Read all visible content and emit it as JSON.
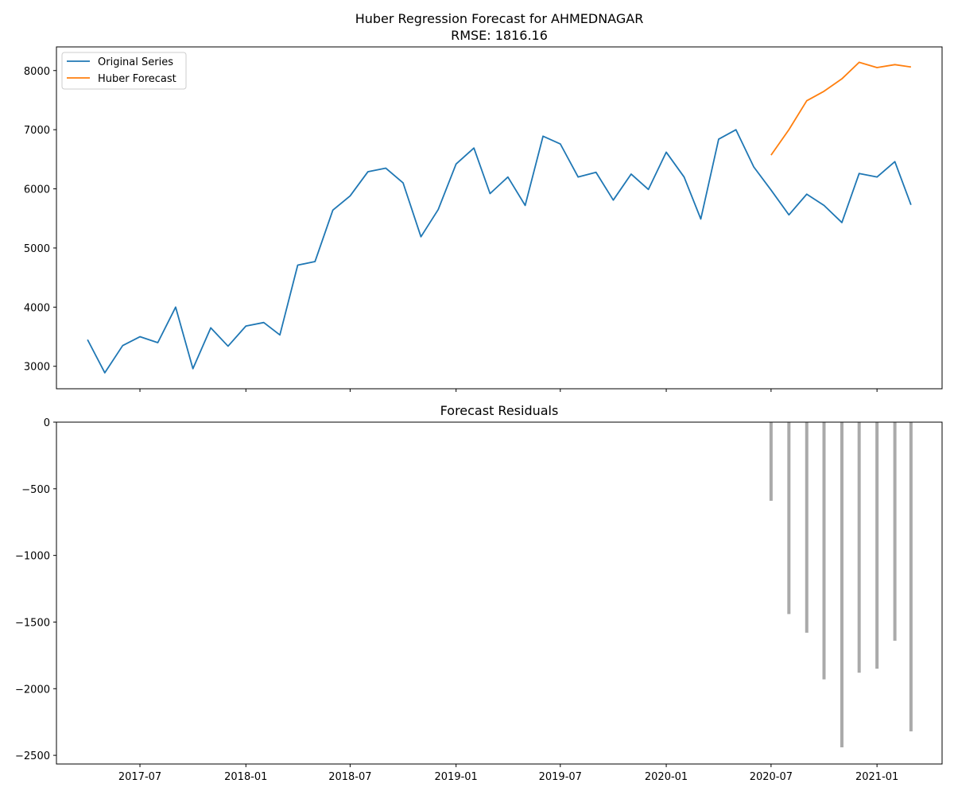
{
  "chart_data": [
    {
      "type": "line",
      "title": "Huber Regression Forecast for AHMEDNAGAR",
      "subtitle": "RMSE: 1816.16",
      "xlabel": "",
      "ylabel": "",
      "xlim": [
        "2017-02-06",
        "2021-04-24"
      ],
      "ylim": [
        2620,
        8400
      ],
      "y_ticks": [
        3000,
        4000,
        5000,
        6000,
        7000,
        8000
      ],
      "x_ticks": [
        "2017-07-01",
        "2018-01-01",
        "2018-07-01",
        "2019-01-01",
        "2019-07-01",
        "2020-01-01",
        "2020-07-01",
        "2021-01-01"
      ],
      "grid": false,
      "legend": "top-left",
      "series": [
        {
          "name": "Original Series",
          "color": "#1f77b4",
          "x": [
            "2017-04-01",
            "2017-05-01",
            "2017-06-01",
            "2017-07-01",
            "2017-08-01",
            "2017-09-01",
            "2017-10-01",
            "2017-11-01",
            "2017-12-01",
            "2018-01-01",
            "2018-02-01",
            "2018-03-01",
            "2018-04-01",
            "2018-05-01",
            "2018-06-01",
            "2018-07-01",
            "2018-08-01",
            "2018-09-01",
            "2018-10-01",
            "2018-11-01",
            "2018-12-01",
            "2019-01-01",
            "2019-02-01",
            "2019-03-01",
            "2019-04-01",
            "2019-05-01",
            "2019-06-01",
            "2019-07-01",
            "2019-08-01",
            "2019-09-01",
            "2019-10-01",
            "2019-11-01",
            "2019-12-01",
            "2020-01-01",
            "2020-02-01",
            "2020-03-01",
            "2020-04-01",
            "2020-05-01",
            "2020-06-01",
            "2020-07-01",
            "2020-08-01",
            "2020-09-01",
            "2020-10-01",
            "2020-11-01",
            "2020-12-01",
            "2021-01-01",
            "2021-02-01",
            "2021-03-01"
          ],
          "y": [
            3450,
            2890,
            3350,
            3500,
            3400,
            4000,
            2960,
            3650,
            3340,
            3680,
            3740,
            3530,
            4710,
            4770,
            5640,
            5880,
            6290,
            6350,
            6100,
            5190,
            5650,
            6420,
            6690,
            5920,
            6200,
            5720,
            6890,
            6760,
            6200,
            6280,
            5810,
            6250,
            5990,
            6620,
            6200,
            5490,
            6840,
            7000,
            6370,
            5980,
            5560,
            5910,
            5720,
            5430,
            6260,
            6200,
            6460,
            5730
          ]
        },
        {
          "name": "Huber Forecast",
          "color": "#ff7f0e",
          "x": [
            "2020-07-01",
            "2020-08-01",
            "2020-09-01",
            "2020-10-01",
            "2020-11-01",
            "2020-12-01",
            "2021-01-01",
            "2021-02-01",
            "2021-03-01"
          ],
          "y": [
            6570,
            7000,
            7490,
            7650,
            7860,
            8140,
            8050,
            8100,
            8060
          ]
        }
      ]
    },
    {
      "type": "bar",
      "title": "Forecast Residuals",
      "xlabel": "",
      "ylabel": "",
      "ylim": [
        -2565,
        0
      ],
      "y_ticks": [
        0,
        -500,
        -1000,
        -1500,
        -2000,
        -2500
      ],
      "color": "#aaaaaa",
      "x": [
        "2020-07-01",
        "2020-08-01",
        "2020-09-01",
        "2020-10-01",
        "2020-11-01",
        "2020-12-01",
        "2021-01-01",
        "2021-02-01",
        "2021-03-01"
      ],
      "values": [
        -590,
        -1440,
        -1580,
        -1930,
        -2440,
        -1880,
        -1850,
        -1640,
        -2320
      ]
    }
  ]
}
